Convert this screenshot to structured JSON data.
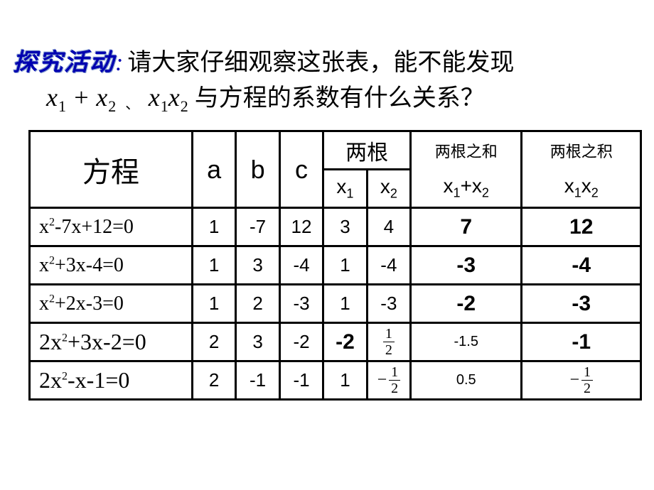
{
  "title": {
    "prefix": "探究活动",
    "colon": ":",
    "line1_rest": "请大家仔细观察这张表，能不能发现",
    "line2_math_left": "x",
    "line2_math_sub1": "1",
    "line2_math_plus": " + ",
    "line2_math_sub2": "2",
    "line2_sep": "、",
    "line2_math_prod_sub1": "1",
    "line2_math_prod_sub2": "2",
    "line2_rest": " 与方程的系数有什么关系？"
  },
  "headers": {
    "equation": "方程",
    "a": "a",
    "b": "b",
    "c": "c",
    "roots": "两根",
    "x1": "x",
    "x1_sub": "1",
    "x2": "x",
    "x2_sub": "2",
    "sum_label": "两根之和",
    "sum_expr_x": "x",
    "sum_expr_s1": "1",
    "sum_plus": "+",
    "sum_expr_s2": "2",
    "prod_label": "两根之积",
    "prod_expr_x": "x",
    "prod_expr_s1": "1",
    "prod_expr_s2": "2"
  },
  "rows": [
    {
      "eq_pre": "x",
      "eq_sup": "2",
      "eq_rest": "-7x+12=0",
      "eq_big": false,
      "a": "1",
      "b": "-7",
      "c": "12",
      "x1": "3",
      "x2": "4",
      "x1_bold": false,
      "sum": "7",
      "prod": "12",
      "sum_bold": true,
      "prod_bold": true,
      "x2_frac": null,
      "prod_frac": null
    },
    {
      "eq_pre": "x",
      "eq_sup": "2",
      "eq_rest": "+3x-4=0",
      "eq_big": false,
      "a": "1",
      "b": "3",
      "c": "-4",
      "x1": "1",
      "x2": "-4",
      "x1_bold": false,
      "sum": "-3",
      "prod": "-4",
      "sum_bold": true,
      "prod_bold": true,
      "x2_frac": null,
      "prod_frac": null
    },
    {
      "eq_pre": "x",
      "eq_sup": "2",
      "eq_rest": "+2x-3=0",
      "eq_big": false,
      "a": "1",
      "b": "2",
      "c": "-3",
      "x1": "1",
      "x2": "-3",
      "x1_bold": false,
      "sum": "-2",
      "prod": "-3",
      "sum_bold": true,
      "prod_bold": true,
      "x2_frac": null,
      "prod_frac": null
    },
    {
      "eq_pre": "2x",
      "eq_sup": "2",
      "eq_rest": "+3x-2=0",
      "eq_big": true,
      "a": "2",
      "b": "3",
      "c": "-2",
      "x1": "-2",
      "x2": "",
      "x1_bold": true,
      "sum": "-1.5",
      "prod": "-1",
      "sum_bold": false,
      "prod_bold": true,
      "x2_frac": {
        "neg": false,
        "num": "1",
        "den": "2"
      },
      "prod_frac": null
    },
    {
      "eq_pre": "2x",
      "eq_sup": "2",
      "eq_rest": "-x-1=0",
      "eq_big": true,
      "a": "2",
      "b": "-1",
      "c": "-1",
      "x1": "1",
      "x2": "",
      "x1_bold": false,
      "sum": "0.5",
      "prod": "",
      "sum_bold": false,
      "prod_bold": false,
      "x2_frac": {
        "neg": true,
        "num": "1",
        "den": "2"
      },
      "prod_frac": {
        "neg": true,
        "num": "1",
        "den": "2"
      }
    }
  ]
}
